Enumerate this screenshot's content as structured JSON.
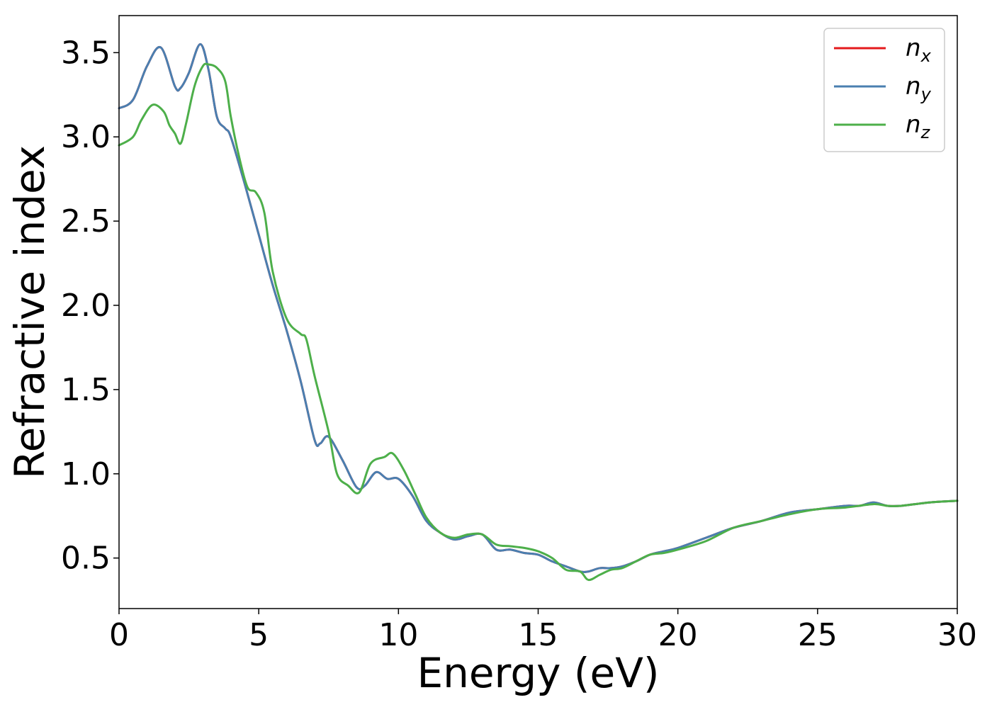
{
  "chart_data": {
    "type": "line",
    "xlabel": "Energy (eV)",
    "ylabel": "Refractive index",
    "xlim": [
      0,
      30
    ],
    "ylim": [
      0.2,
      3.72
    ],
    "xticks": [
      0,
      5,
      10,
      15,
      20,
      25,
      30
    ],
    "xtick_labels": [
      "0",
      "5",
      "10",
      "15",
      "20",
      "25",
      "30"
    ],
    "yticks": [
      0.5,
      1.0,
      1.5,
      2.0,
      2.5,
      3.0,
      3.5
    ],
    "ytick_labels": [
      "0.5",
      "1.0",
      "1.5",
      "2.0",
      "2.5",
      "3.0",
      "3.5"
    ],
    "grid": false,
    "legend_position": "top-right",
    "series": [
      {
        "name": "n",
        "subscript": "x",
        "color": "#e41a1c",
        "x": [
          0,
          0.5,
          1.0,
          1.5,
          2.0,
          2.2,
          2.5,
          2.9,
          3.2,
          3.5,
          3.8,
          4.0,
          4.5,
          5.0,
          5.5,
          6.0,
          6.5,
          7.0,
          7.2,
          7.5,
          8.0,
          8.5,
          8.8,
          9.2,
          9.6,
          10.0,
          10.5,
          11.0,
          11.5,
          12.0,
          12.5,
          13.0,
          13.5,
          14.0,
          14.5,
          15.0,
          15.5,
          16.0,
          16.5,
          16.8,
          17.2,
          17.6,
          18.0,
          18.5,
          19.0,
          19.5,
          20.0,
          21.0,
          22.0,
          23.0,
          24.0,
          25.0,
          26.0,
          26.5,
          27.0,
          27.5,
          28.0,
          29.0,
          30.0
        ],
        "y": [
          3.17,
          3.22,
          3.42,
          3.53,
          3.3,
          3.29,
          3.38,
          3.55,
          3.4,
          3.12,
          3.05,
          3.0,
          2.72,
          2.42,
          2.12,
          1.85,
          1.55,
          1.2,
          1.18,
          1.22,
          1.08,
          0.92,
          0.93,
          1.01,
          0.97,
          0.97,
          0.87,
          0.72,
          0.65,
          0.61,
          0.63,
          0.64,
          0.55,
          0.55,
          0.53,
          0.52,
          0.48,
          0.45,
          0.42,
          0.42,
          0.44,
          0.44,
          0.45,
          0.48,
          0.52,
          0.54,
          0.56,
          0.62,
          0.68,
          0.72,
          0.77,
          0.79,
          0.81,
          0.81,
          0.83,
          0.81,
          0.81,
          0.83,
          0.84
        ]
      },
      {
        "name": "n",
        "subscript": "y",
        "color": "#4a7fb0",
        "x": [
          0,
          0.5,
          1.0,
          1.5,
          2.0,
          2.2,
          2.5,
          2.9,
          3.2,
          3.5,
          3.8,
          4.0,
          4.5,
          5.0,
          5.5,
          6.0,
          6.5,
          7.0,
          7.2,
          7.5,
          8.0,
          8.5,
          8.8,
          9.2,
          9.6,
          10.0,
          10.5,
          11.0,
          11.5,
          12.0,
          12.5,
          13.0,
          13.5,
          14.0,
          14.5,
          15.0,
          15.5,
          16.0,
          16.5,
          16.8,
          17.2,
          17.6,
          18.0,
          18.5,
          19.0,
          19.5,
          20.0,
          21.0,
          22.0,
          23.0,
          24.0,
          25.0,
          26.0,
          26.5,
          27.0,
          27.5,
          28.0,
          29.0,
          30.0
        ],
        "y": [
          3.17,
          3.22,
          3.42,
          3.53,
          3.3,
          3.29,
          3.38,
          3.55,
          3.4,
          3.12,
          3.05,
          3.0,
          2.72,
          2.42,
          2.12,
          1.85,
          1.55,
          1.2,
          1.18,
          1.22,
          1.08,
          0.92,
          0.93,
          1.01,
          0.97,
          0.97,
          0.87,
          0.72,
          0.65,
          0.61,
          0.63,
          0.64,
          0.55,
          0.55,
          0.53,
          0.52,
          0.48,
          0.45,
          0.42,
          0.42,
          0.44,
          0.44,
          0.45,
          0.48,
          0.52,
          0.54,
          0.56,
          0.62,
          0.68,
          0.72,
          0.77,
          0.79,
          0.81,
          0.81,
          0.83,
          0.81,
          0.81,
          0.83,
          0.84
        ]
      },
      {
        "name": "n",
        "subscript": "z",
        "color": "#4daf4a",
        "x": [
          0,
          0.5,
          0.8,
          1.2,
          1.6,
          1.8,
          2.0,
          2.2,
          2.4,
          2.7,
          3.0,
          3.2,
          3.5,
          3.8,
          4.0,
          4.3,
          4.6,
          4.9,
          5.2,
          5.5,
          6.0,
          6.5,
          6.7,
          7.0,
          7.5,
          7.8,
          8.2,
          8.6,
          9.0,
          9.5,
          9.8,
          10.2,
          10.6,
          11.0,
          11.5,
          12.0,
          12.5,
          13.0,
          13.5,
          14.0,
          14.5,
          15.0,
          15.5,
          16.0,
          16.5,
          16.8,
          17.2,
          17.6,
          18.0,
          18.5,
          19.0,
          19.5,
          20.0,
          21.0,
          22.0,
          23.0,
          24.0,
          25.0,
          26.0,
          27.0,
          27.5,
          28.0,
          29.0,
          30.0
        ],
        "y": [
          2.95,
          3.0,
          3.1,
          3.19,
          3.15,
          3.07,
          3.02,
          2.96,
          3.08,
          3.3,
          3.42,
          3.43,
          3.41,
          3.33,
          3.12,
          2.88,
          2.7,
          2.67,
          2.55,
          2.2,
          1.92,
          1.83,
          1.8,
          1.58,
          1.25,
          1.0,
          0.93,
          0.89,
          1.06,
          1.1,
          1.12,
          1.02,
          0.88,
          0.74,
          0.65,
          0.62,
          0.64,
          0.64,
          0.58,
          0.57,
          0.56,
          0.54,
          0.5,
          0.43,
          0.42,
          0.37,
          0.4,
          0.43,
          0.44,
          0.48,
          0.52,
          0.53,
          0.55,
          0.6,
          0.68,
          0.72,
          0.76,
          0.79,
          0.8,
          0.82,
          0.81,
          0.81,
          0.83,
          0.84
        ]
      }
    ]
  }
}
